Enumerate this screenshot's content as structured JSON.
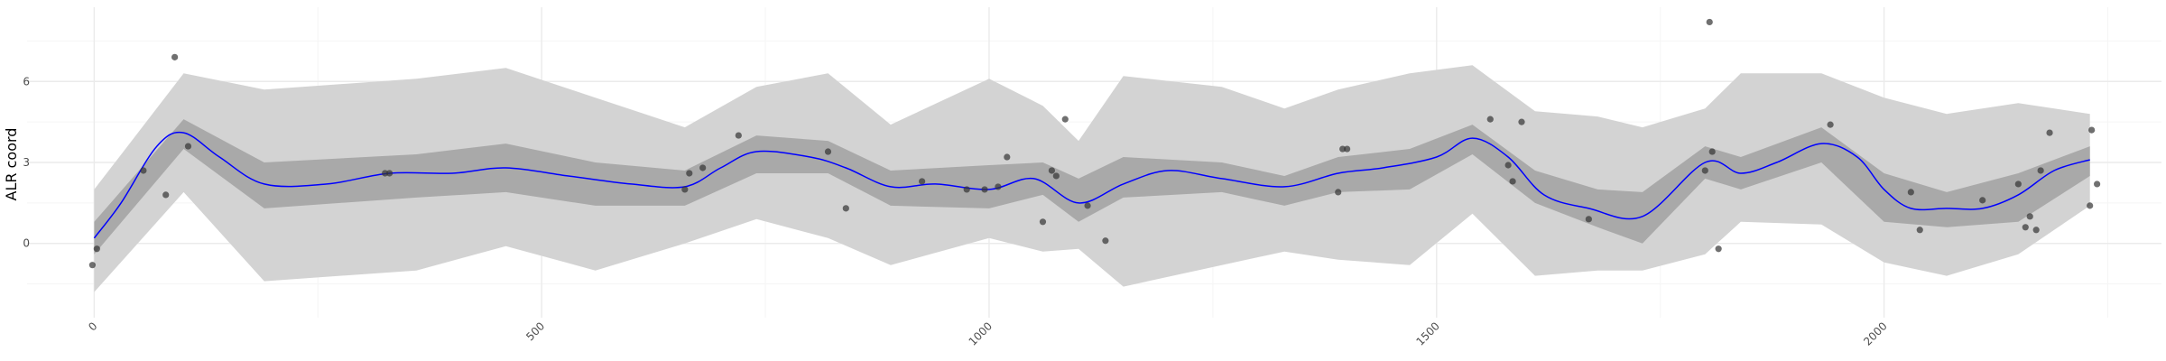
{
  "chart_data": {
    "type": "scatter",
    "title": "",
    "xlabel": "",
    "ylabel": "ALR coord",
    "xlim": [
      -75,
      2310
    ],
    "ylim": [
      -2.75,
      8.75
    ],
    "x_ticks": [
      0,
      500,
      1000,
      1500,
      2000
    ],
    "x_tick_labels": [
      "0",
      "500",
      "1000",
      "1500",
      "2000"
    ],
    "x_minor_ticks": [
      250,
      750,
      1250,
      1750,
      2250
    ],
    "y_ticks": [
      0,
      3,
      6
    ],
    "y_tick_labels": [
      "0",
      "3",
      "6"
    ],
    "y_minor_ticks": [
      -1.5,
      1.5,
      4.5,
      7.5
    ],
    "grid": true,
    "legend": "none",
    "colors": {
      "fit_line": "#0000ff",
      "inner_band": "#a9a9a9",
      "outer_band": "#d3d3d3",
      "points": "#333333",
      "grid_major": "#ebebeb",
      "grid_minor": "#f5f5f5"
    },
    "series": [
      {
        "type": "band",
        "x": [
          0,
          100,
          190,
          360,
          460,
          560,
          660,
          740,
          820,
          890,
          1000,
          1060,
          1100,
          1150,
          1260,
          1330,
          1390,
          1470,
          1540,
          1610,
          1680,
          1730,
          1800,
          1840,
          1930,
          2000,
          2070,
          2150,
          2230
        ],
        "upper": [
          2.0,
          6.3,
          5.7,
          6.1,
          6.5,
          5.4,
          4.3,
          5.8,
          6.3,
          4.4,
          6.1,
          5.1,
          3.8,
          6.2,
          5.8,
          5.0,
          5.7,
          6.3,
          6.6,
          4.9,
          4.7,
          4.3,
          5.0,
          6.3,
          6.3,
          5.4,
          4.8,
          5.2,
          4.8
        ],
        "lower": [
          -1.8,
          1.9,
          -1.4,
          -1.0,
          -0.1,
          -1.0,
          0.0,
          0.9,
          0.2,
          -0.8,
          0.2,
          -0.3,
          -0.2,
          -1.6,
          -0.8,
          -0.3,
          -0.6,
          -0.8,
          1.1,
          -1.2,
          -1.0,
          -1.0,
          -0.4,
          0.8,
          0.7,
          -0.7,
          -1.2,
          -0.4,
          1.4
        ]
      },
      {
        "type": "band",
        "x": [
          0,
          100,
          190,
          360,
          460,
          560,
          660,
          740,
          820,
          890,
          1000,
          1060,
          1100,
          1150,
          1260,
          1330,
          1390,
          1470,
          1540,
          1610,
          1680,
          1730,
          1800,
          1840,
          1930,
          2000,
          2070,
          2150,
          2230
        ],
        "upper": [
          0.8,
          4.6,
          3.0,
          3.3,
          3.7,
          3.0,
          2.7,
          4.0,
          3.8,
          2.7,
          2.9,
          3.0,
          2.4,
          3.2,
          3.0,
          2.5,
          3.2,
          3.5,
          4.4,
          2.7,
          2.0,
          1.9,
          3.6,
          3.2,
          4.3,
          2.6,
          1.9,
          2.6,
          3.6
        ],
        "lower": [
          -0.4,
          3.5,
          1.3,
          1.7,
          1.9,
          1.4,
          1.4,
          2.6,
          2.6,
          1.4,
          1.3,
          1.8,
          0.8,
          1.7,
          1.9,
          1.4,
          1.9,
          2.0,
          3.3,
          1.5,
          0.6,
          0.0,
          2.4,
          2.0,
          3.0,
          0.8,
          0.6,
          0.8,
          2.5
        ]
      },
      {
        "type": "line",
        "x": [
          0,
          30,
          70,
          100,
          140,
          190,
          260,
          330,
          400,
          460,
          530,
          600,
          660,
          700,
          740,
          800,
          840,
          890,
          940,
          1000,
          1050,
          1100,
          1150,
          1200,
          1260,
          1330,
          1390,
          1440,
          1500,
          1540,
          1580,
          1620,
          1670,
          1730,
          1800,
          1840,
          1880,
          1930,
          1970,
          2000,
          2030,
          2070,
          2110,
          2150,
          2190,
          2230
        ],
        "y": [
          0.2,
          1.5,
          3.6,
          4.1,
          3.2,
          2.2,
          2.2,
          2.6,
          2.6,
          2.8,
          2.5,
          2.2,
          2.1,
          2.8,
          3.4,
          3.2,
          2.8,
          2.1,
          2.2,
          2.0,
          2.4,
          1.5,
          2.2,
          2.7,
          2.4,
          2.1,
          2.6,
          2.8,
          3.2,
          3.9,
          3.2,
          1.8,
          1.3,
          1.0,
          3.0,
          2.6,
          3.0,
          3.7,
          3.2,
          2.0,
          1.3,
          1.3,
          1.3,
          1.8,
          2.7,
          3.1
        ]
      },
      {
        "type": "scatter",
        "x": [
          -2,
          3,
          55,
          80,
          90,
          105,
          325,
          330,
          660,
          665,
          680,
          720,
          820,
          840,
          925,
          975,
          995,
          1010,
          1020,
          1060,
          1070,
          1075,
          1085,
          1110,
          1130,
          1390,
          1395,
          1400,
          1560,
          1580,
          1585,
          1595,
          1670,
          1800,
          1805,
          1808,
          1815,
          1940,
          2030,
          2040,
          2110,
          2150,
          2158,
          2163,
          2170,
          2175,
          2185,
          2230,
          2232,
          2238
        ],
        "y": [
          -0.8,
          -0.2,
          2.7,
          1.8,
          6.9,
          3.6,
          2.6,
          2.6,
          2.0,
          2.6,
          2.8,
          4.0,
          3.4,
          1.3,
          2.3,
          2.0,
          2.0,
          2.1,
          3.2,
          0.8,
          2.7,
          2.5,
          4.6,
          1.4,
          0.1,
          1.9,
          3.5,
          3.5,
          4.6,
          2.9,
          2.3,
          4.5,
          0.9,
          2.7,
          8.2,
          3.4,
          -0.2,
          4.4,
          1.9,
          0.5,
          1.6,
          2.2,
          0.6,
          1.0,
          0.5,
          2.7,
          4.1,
          1.4,
          4.2,
          2.2
        ]
      }
    ]
  }
}
